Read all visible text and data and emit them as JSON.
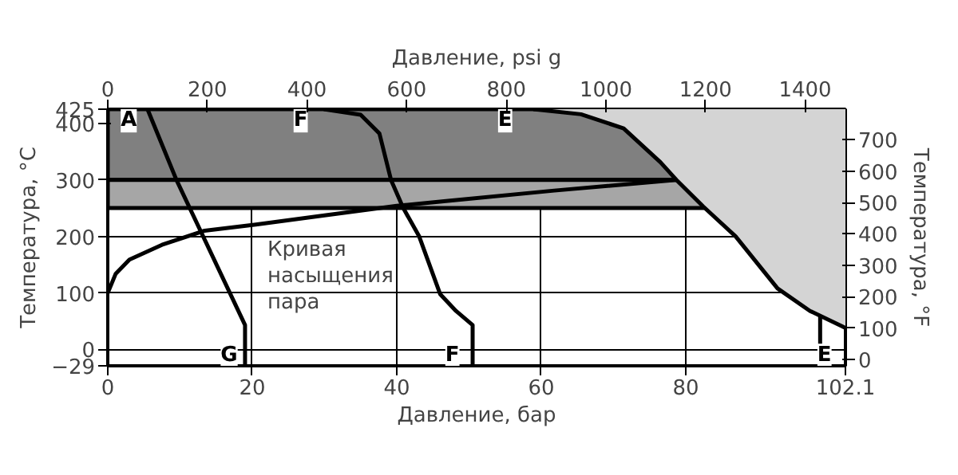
{
  "chart_data": {
    "type": "line",
    "xlabel": "Давление, бар",
    "x2label": "Давление, psi g",
    "ylabel": "Температура, °C",
    "y2label": "Температура, °F",
    "xlim": [
      0,
      102.1
    ],
    "xticks": [
      0,
      20,
      40,
      60,
      80,
      102.1
    ],
    "x2lim": [
      0,
      1480.8
    ],
    "x2ticks": [
      0,
      200,
      400,
      600,
      800,
      1000,
      1200,
      1400
    ],
    "ylim": [
      -29,
      425
    ],
    "yticks": [
      -29,
      0,
      100,
      200,
      300,
      400,
      425
    ],
    "y2lim": [
      -20.2,
      797
    ],
    "y2ticks": [
      0,
      100,
      200,
      300,
      400,
      500,
      600,
      700
    ],
    "grid": true,
    "bands": [
      {
        "axis": "y",
        "from": 300,
        "to": 425,
        "color": "#808080"
      },
      {
        "axis": "y",
        "from": 250,
        "to": 300,
        "color": "#a6a6a6"
      }
    ],
    "series": [
      {
        "color": "#000000",
        "x": [
          58.9,
          65.5,
          71.4,
          76.5,
          78.7,
          82.4,
          86.9,
          92.7,
          97.2,
          101.6,
          102.1
        ],
        "values": [
          425,
          416,
          391,
          331,
          300,
          253,
          200,
          108,
          68,
          41,
          38
        ],
        "lower": [
          425,
          416,
          391,
          331,
          300,
          253,
          200,
          108,
          68,
          41,
          38
        ],
        "upper": [
          425,
          425,
          425,
          425,
          425,
          425,
          425,
          425,
          425,
          425,
          425
        ]
      },
      {
        "color": "#000000",
        "x": [
          0,
          1.1,
          3.0,
          7.5,
          13.4,
          20.5,
          30,
          40,
          47.1,
          61.8,
          78.7
        ],
        "values": [
          100,
          134,
          159,
          185,
          210,
          221,
          237,
          254,
          263,
          281,
          300
        ]
      },
      {
        "color": "#000000",
        "x": [
          5.5,
          9.5,
          19.0,
          19.0
        ],
        "values": [
          425,
          300,
          43,
          -29
        ]
      },
      {
        "color": "#000000",
        "x": [
          29.9,
          35,
          37.6,
          39.2,
          40.9,
          43.1,
          46,
          48.2,
          50.5,
          50.5
        ],
        "values": [
          425,
          415,
          382,
          300,
          250,
          200,
          98,
          68,
          43,
          -29
        ]
      },
      {
        "color": "#000000",
        "x": [
          98.6,
          98.6
        ],
        "values": [
          60,
          -29
        ]
      }
    ],
    "annotations": [
      {
        "text": "A",
        "x": 2.9,
        "y": 405
      },
      {
        "text": "F",
        "x": 26.7,
        "y": 405
      },
      {
        "text": "E",
        "x": 55,
        "y": 405
      },
      {
        "text": "G",
        "x": 16.8,
        "y": -11
      },
      {
        "text": "F",
        "x": 47.7,
        "y": -11
      },
      {
        "text": "E",
        "x": 99.2,
        "y": -11
      },
      "Кривая\nнасыщения\nпара"
    ]
  }
}
